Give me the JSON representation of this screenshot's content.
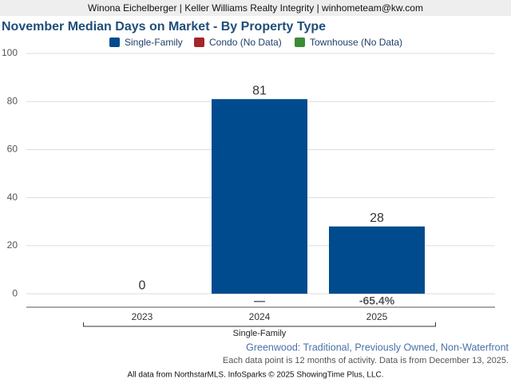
{
  "header": "Winona Eichelberger | Keller Williams Realty Integrity | winhometeam@kw.com",
  "chart_data": {
    "type": "bar",
    "title": "November Median Days on Market - By Property Type",
    "categories": [
      "2023",
      "2024",
      "2025"
    ],
    "series": [
      {
        "name": "Single-Family",
        "color": "#004b8d",
        "values": [
          0,
          81,
          28
        ]
      },
      {
        "name": "Condo (No Data)",
        "color": "#a3262a",
        "values": [
          null,
          null,
          null
        ]
      },
      {
        "name": "Townhouse (No Data)",
        "color": "#3d8b37",
        "values": [
          null,
          null,
          null
        ]
      }
    ],
    "change_labels": [
      null,
      "—",
      "-65.4%"
    ],
    "group_label": "Single-Family",
    "ylim": [
      -5.6,
      100
    ],
    "yticks": [
      0,
      20,
      40,
      60,
      80,
      100
    ],
    "grid": true,
    "legend": "top",
    "location": "Greenwood: Traditional, Previously Owned, Non-Waterfront",
    "note": "Each data point is 12 months of activity. Data is from December 13, 2025.",
    "source": "All data from NorthstarMLS. InfoSparks © 2025 ShowingTime Plus, LLC."
  }
}
